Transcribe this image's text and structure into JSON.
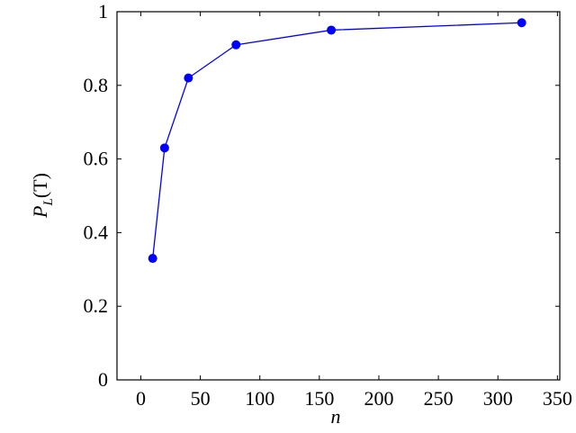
{
  "chart_data": {
    "type": "line",
    "x": [
      10,
      20,
      40,
      80,
      160,
      320
    ],
    "series": [
      {
        "color": "#0000ff",
        "values": [
          0.33,
          0.63,
          0.82,
          0.91,
          0.95,
          0.97
        ]
      }
    ],
    "xlabel": "n",
    "ylabel": {
      "main": "P",
      "sub": "L",
      "rest": "(T)"
    },
    "xlim": [
      -20,
      352
    ],
    "ylim": [
      0,
      1
    ],
    "xticks": [
      0,
      50,
      100,
      150,
      200,
      250,
      300,
      350
    ],
    "yticks": [
      0,
      0.2,
      0.4,
      0.6,
      0.8,
      1
    ],
    "grid": false
  }
}
